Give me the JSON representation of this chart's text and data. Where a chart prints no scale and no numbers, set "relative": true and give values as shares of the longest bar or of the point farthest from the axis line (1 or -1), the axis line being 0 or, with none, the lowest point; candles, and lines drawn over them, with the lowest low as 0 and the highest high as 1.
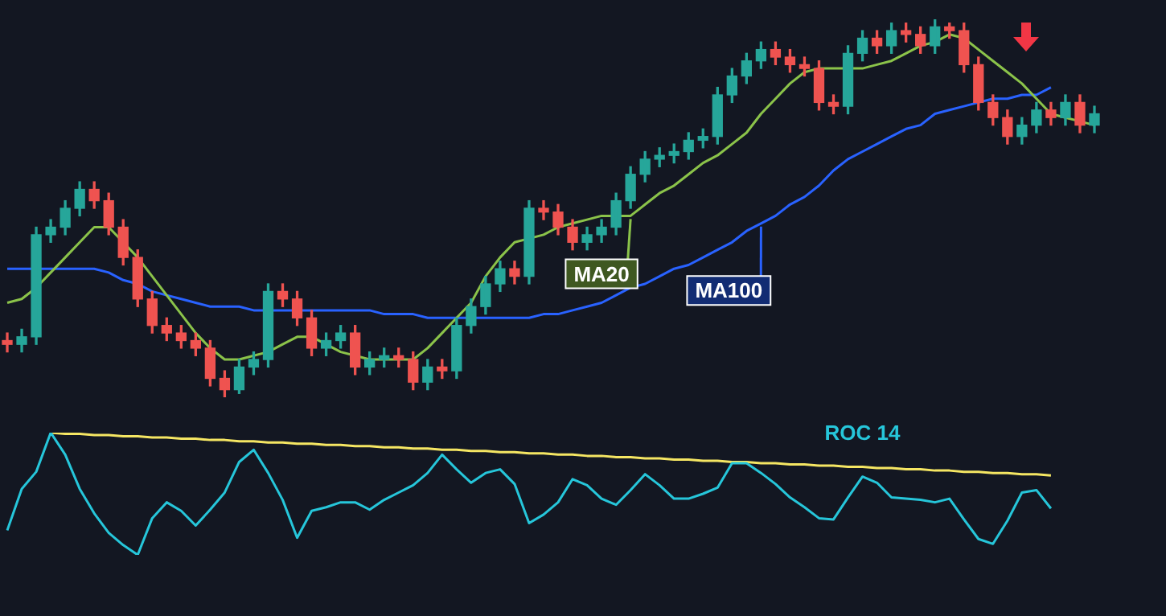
{
  "chart_data": [
    {
      "type": "candlestick",
      "relative": true,
      "legend": "center",
      "categories": [
        null,
        null,
        null,
        null,
        null,
        null,
        null,
        null,
        null,
        null,
        null,
        null,
        null,
        null,
        null,
        null,
        null,
        null,
        null,
        null,
        null,
        null,
        null,
        null,
        null,
        null,
        null,
        null,
        null,
        null,
        null,
        null,
        null,
        null,
        null,
        null,
        null,
        null,
        null,
        null,
        null,
        null,
        null,
        null,
        null,
        null,
        null,
        null,
        null,
        null,
        null,
        null,
        null,
        null,
        null,
        null,
        null,
        null,
        null,
        null,
        null,
        null,
        null,
        null,
        null,
        null,
        null,
        null,
        null,
        null,
        null,
        null,
        null,
        null,
        null,
        null
      ],
      "ohlc": [
        [
          0.15,
          0.17,
          0.12,
          0.14
        ],
        [
          0.14,
          0.18,
          0.12,
          0.16
        ],
        [
          0.16,
          0.45,
          0.14,
          0.43
        ],
        [
          0.43,
          0.47,
          0.41,
          0.45
        ],
        [
          0.45,
          0.52,
          0.43,
          0.5
        ],
        [
          0.5,
          0.57,
          0.48,
          0.55
        ],
        [
          0.55,
          0.57,
          0.5,
          0.52
        ],
        [
          0.52,
          0.54,
          0.43,
          0.45
        ],
        [
          0.45,
          0.47,
          0.35,
          0.37
        ],
        [
          0.37,
          0.39,
          0.24,
          0.26
        ],
        [
          0.26,
          0.28,
          0.17,
          0.19
        ],
        [
          0.19,
          0.21,
          0.15,
          0.17
        ],
        [
          0.17,
          0.19,
          0.13,
          0.15
        ],
        [
          0.15,
          0.17,
          0.11,
          0.13
        ],
        [
          0.13,
          0.15,
          0.03,
          0.05
        ],
        [
          0.05,
          0.07,
          0,
          0.02
        ],
        [
          0.02,
          0.1,
          0.01,
          0.08
        ],
        [
          0.08,
          0.12,
          0.06,
          0.1
        ],
        [
          0.1,
          0.3,
          0.08,
          0.28
        ],
        [
          0.28,
          0.3,
          0.24,
          0.26
        ],
        [
          0.26,
          0.28,
          0.19,
          0.21
        ],
        [
          0.21,
          0.23,
          0.11,
          0.13
        ],
        [
          0.13,
          0.17,
          0.11,
          0.15
        ],
        [
          0.15,
          0.19,
          0.13,
          0.17
        ],
        [
          0.17,
          0.19,
          0.06,
          0.08
        ],
        [
          0.08,
          0.12,
          0.06,
          0.1
        ],
        [
          0.1,
          0.13,
          0.08,
          0.11
        ],
        [
          0.11,
          0.13,
          0.08,
          0.1
        ],
        [
          0.1,
          0.12,
          0.02,
          0.04
        ],
        [
          0.04,
          0.1,
          0.02,
          0.08
        ],
        [
          0.08,
          0.1,
          0.05,
          0.07
        ],
        [
          0.07,
          0.21,
          0.05,
          0.19
        ],
        [
          0.19,
          0.26,
          0.17,
          0.24
        ],
        [
          0.24,
          0.32,
          0.22,
          0.3
        ],
        [
          0.3,
          0.36,
          0.28,
          0.34
        ],
        [
          0.34,
          0.36,
          0.3,
          0.32
        ],
        [
          0.32,
          0.52,
          0.3,
          0.5
        ],
        [
          0.5,
          0.52,
          0.47,
          0.49
        ],
        [
          0.49,
          0.51,
          0.43,
          0.45
        ],
        [
          0.45,
          0.47,
          0.39,
          0.41
        ],
        [
          0.41,
          0.45,
          0.39,
          0.43
        ],
        [
          0.43,
          0.47,
          0.41,
          0.45
        ],
        [
          0.45,
          0.54,
          0.43,
          0.52
        ],
        [
          0.52,
          0.61,
          0.5,
          0.59
        ],
        [
          0.59,
          0.65,
          0.57,
          0.63
        ],
        [
          0.63,
          0.66,
          0.61,
          0.64
        ],
        [
          0.64,
          0.67,
          0.62,
          0.65
        ],
        [
          0.65,
          0.7,
          0.63,
          0.68
        ],
        [
          0.68,
          0.71,
          0.66,
          0.69
        ],
        [
          0.69,
          0.82,
          0.67,
          0.8
        ],
        [
          0.8,
          0.87,
          0.78,
          0.85
        ],
        [
          0.85,
          0.91,
          0.83,
          0.89
        ],
        [
          0.89,
          0.94,
          0.87,
          0.92
        ],
        [
          0.92,
          0.94,
          0.88,
          0.9
        ],
        [
          0.9,
          0.92,
          0.86,
          0.88
        ],
        [
          0.88,
          0.9,
          0.85,
          0.87
        ],
        [
          0.87,
          0.89,
          0.76,
          0.78
        ],
        [
          0.78,
          0.8,
          0.75,
          0.77
        ],
        [
          0.77,
          0.93,
          0.75,
          0.91
        ],
        [
          0.91,
          0.97,
          0.89,
          0.95
        ],
        [
          0.95,
          0.97,
          0.91,
          0.93
        ],
        [
          0.93,
          0.99,
          0.91,
          0.97
        ],
        [
          0.97,
          0.99,
          0.94,
          0.96
        ],
        [
          0.96,
          0.98,
          0.91,
          0.93
        ],
        [
          0.93,
          1,
          0.91,
          0.98
        ],
        [
          0.98,
          0.99,
          0.95,
          0.97
        ],
        [
          0.97,
          0.99,
          0.86,
          0.88
        ],
        [
          0.88,
          0.9,
          0.76,
          0.78
        ],
        [
          0.78,
          0.8,
          0.72,
          0.74
        ],
        [
          0.74,
          0.76,
          0.67,
          0.69
        ],
        [
          0.69,
          0.74,
          0.67,
          0.72
        ],
        [
          0.72,
          0.78,
          0.7,
          0.76
        ],
        [
          0.76,
          0.78,
          0.72,
          0.74
        ],
        [
          0.74,
          0.8,
          0.72,
          0.78
        ],
        [
          0.78,
          0.8,
          0.7,
          0.72
        ],
        [
          0.72,
          0.77,
          0.7,
          0.75
        ]
      ],
      "series": [
        {
          "type": "line",
          "name": "MA20",
          "color": "#8bc34a",
          "values": [
            0.25,
            0.26,
            0.29,
            0.33,
            0.37,
            0.41,
            0.45,
            0.45,
            0.41,
            0.37,
            0.32,
            0.27,
            0.22,
            0.17,
            0.13,
            0.1,
            0.1,
            0.11,
            0.12,
            0.14,
            0.16,
            0.16,
            0.14,
            0.12,
            0.11,
            0.1,
            0.1,
            0.1,
            0.1,
            0.13,
            0.17,
            0.21,
            0.25,
            0.32,
            0.37,
            0.41,
            0.42,
            0.43,
            0.45,
            0.46,
            0.47,
            0.48,
            0.48,
            0.48,
            0.51,
            0.54,
            0.56,
            0.59,
            0.62,
            0.64,
            0.67,
            0.7,
            0.75,
            0.79,
            0.83,
            0.86,
            0.87,
            0.87,
            0.87,
            0.87,
            0.88,
            0.89,
            0.91,
            0.93,
            0.94,
            0.96,
            0.95,
            0.92,
            0.89,
            0.86,
            0.83,
            0.79,
            0.75,
            0.74,
            0.73,
            0.72
          ]
        },
        {
          "type": "line",
          "name": "MA100",
          "color": "#2962ff",
          "values": [
            0.34,
            0.34,
            0.34,
            0.34,
            0.34,
            0.34,
            0.34,
            0.33,
            0.31,
            0.3,
            0.28,
            0.27,
            0.26,
            0.25,
            0.24,
            0.24,
            0.24,
            0.23,
            0.23,
            0.23,
            0.23,
            0.23,
            0.23,
            0.23,
            0.23,
            0.23,
            0.22,
            0.22,
            0.22,
            0.21,
            0.21,
            0.21,
            0.21,
            0.21,
            0.21,
            0.21,
            0.21,
            0.22,
            0.22,
            0.23,
            0.24,
            0.25,
            0.27,
            0.29,
            0.3,
            0.32,
            0.34,
            0.35,
            0.37,
            0.39,
            0.41,
            0.44,
            0.46,
            0.48,
            0.51,
            0.53,
            0.56,
            0.6,
            0.63,
            0.65,
            0.67,
            0.69,
            0.71,
            0.72,
            0.75,
            0.76,
            0.77,
            0.78,
            0.79,
            0.79,
            0.8,
            0.8,
            0.82,
            null,
            null,
            null
          ]
        }
      ]
    },
    {
      "type": "line",
      "relative": true,
      "categories": [
        null,
        null,
        null,
        null,
        null,
        null,
        null,
        null,
        null,
        null,
        null,
        null,
        null,
        null,
        null,
        null,
        null,
        null,
        null,
        null,
        null,
        null,
        null,
        null,
        null,
        null,
        null,
        null,
        null,
        null,
        null,
        null,
        null,
        null,
        null,
        null,
        null,
        null,
        null,
        null,
        null,
        null,
        null,
        null,
        null,
        null,
        null,
        null,
        null,
        null,
        null,
        null,
        null,
        null,
        null,
        null,
        null,
        null,
        null,
        null,
        null,
        null,
        null,
        null,
        null,
        null,
        null,
        null,
        null,
        null,
        null,
        null,
        null,
        null,
        null,
        null
      ],
      "series": [
        {
          "name": "ROC 14",
          "color": "#26c6da",
          "values": [
            0.2,
            0.54,
            0.68,
            1,
            0.82,
            0.54,
            0.34,
            0.18,
            0.08,
            0,
            0.3,
            0.43,
            0.36,
            0.24,
            0.37,
            0.51,
            0.76,
            0.86,
            0.67,
            0.45,
            0.14,
            0.36,
            0.39,
            0.43,
            0.43,
            0.37,
            0.45,
            0.51,
            0.57,
            0.67,
            0.82,
            0.7,
            0.59,
            0.67,
            0.7,
            0.58,
            0.26,
            0.33,
            0.43,
            0.62,
            0.57,
            0.46,
            0.41,
            0.53,
            0.66,
            0.57,
            0.46,
            0.46,
            0.5,
            0.55,
            0.75,
            0.75,
            0.67,
            0.58,
            0.47,
            0.39,
            0.3,
            0.29,
            0.47,
            0.64,
            0.59,
            0.47,
            0.46,
            0.45,
            0.43,
            0.46,
            0.29,
            0.13,
            0.09,
            0.28,
            0.51,
            0.53,
            0.38,
            null,
            null,
            null
          ]
        },
        {
          "color": "#f5e663",
          "values": [
            null,
            null,
            null,
            1,
            0.99,
            0.99,
            0.98,
            0.98,
            0.97,
            0.97,
            0.96,
            0.96,
            0.95,
            0.95,
            0.94,
            0.94,
            0.93,
            0.93,
            0.92,
            0.92,
            0.91,
            0.91,
            0.9,
            0.9,
            0.89,
            0.89,
            0.88,
            0.88,
            0.87,
            0.87,
            0.86,
            0.86,
            0.85,
            0.85,
            0.84,
            0.84,
            0.83,
            0.83,
            0.82,
            0.82,
            0.81,
            0.81,
            0.8,
            0.8,
            0.79,
            0.79,
            0.78,
            0.78,
            0.77,
            0.77,
            0.76,
            0.76,
            0.75,
            0.75,
            0.74,
            0.74,
            0.73,
            0.73,
            0.72,
            0.72,
            0.71,
            0.71,
            0.7,
            0.7,
            0.69,
            0.69,
            0.68,
            0.68,
            0.67,
            0.67,
            0.66,
            0.66,
            0.65,
            null,
            null,
            null
          ]
        }
      ]
    }
  ]
}
